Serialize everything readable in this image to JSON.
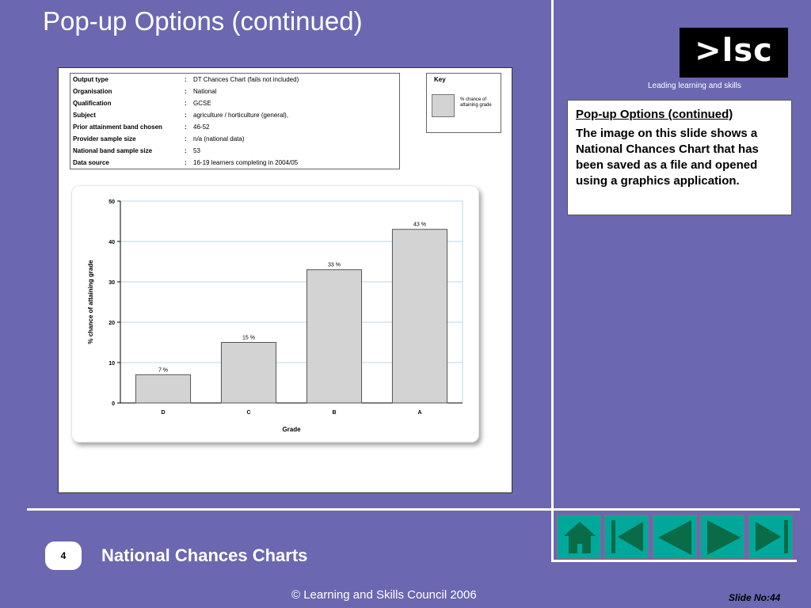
{
  "slide": {
    "title": "Pop-up Options (continued)",
    "section_title": "National Chances Charts",
    "number_badge": "4",
    "copyright": "© Learning and Skills Council 2006",
    "slide_no": "Slide No:44"
  },
  "logo": {
    "mark": ">lsc",
    "tagline": "Leading learning and skills"
  },
  "note": {
    "title": "Pop-up Options (continued)",
    "body": "The image on this slide shows a National Chances Chart that has been saved as a file and opened using a graphics application."
  },
  "info_rows": [
    {
      "label": "Output type",
      "value": "DT Chances Chart (fails not included)"
    },
    {
      "label": "Organisation",
      "value": "National"
    },
    {
      "label": "Qualification",
      "value": "GCSE"
    },
    {
      "label": "Subject",
      "value": "agriculture / horticulture (general),"
    },
    {
      "label": "Prior attainment band chosen",
      "value": "46-52"
    },
    {
      "label": "Provider sample size",
      "value": "n/a (national data)"
    },
    {
      "label": "National band sample size",
      "value": "53"
    },
    {
      "label": "Data source",
      "value": "16-19 learners completing in 2004/05"
    }
  ],
  "separator": ":",
  "key": {
    "title": "Key",
    "label": "% chance of attaining grade"
  },
  "chart_data": {
    "type": "bar",
    "categories": [
      "D",
      "C",
      "B",
      "A"
    ],
    "values": [
      7,
      15,
      33,
      43
    ],
    "data_labels": [
      "7 %",
      "15 %",
      "33 %",
      "43 %"
    ],
    "xlabel": "Grade",
    "ylabel": "% chance of attaining grade",
    "ylim": [
      0,
      50
    ],
    "yticks": [
      0,
      10,
      20,
      30,
      40,
      50
    ],
    "grid": true,
    "bar_color": "#d3d3d3",
    "grid_color": "#b9d7ee"
  },
  "nav": [
    {
      "name": "home",
      "icon": "home-icon"
    },
    {
      "name": "first",
      "icon": "first-slide-icon"
    },
    {
      "name": "previous",
      "icon": "previous-icon"
    },
    {
      "name": "next",
      "icon": "next-icon"
    },
    {
      "name": "last",
      "icon": "last-slide-icon"
    }
  ],
  "colors": {
    "background": "#6b67b0",
    "nav_button": "#00a89b",
    "nav_icon": "#0a6b47"
  }
}
